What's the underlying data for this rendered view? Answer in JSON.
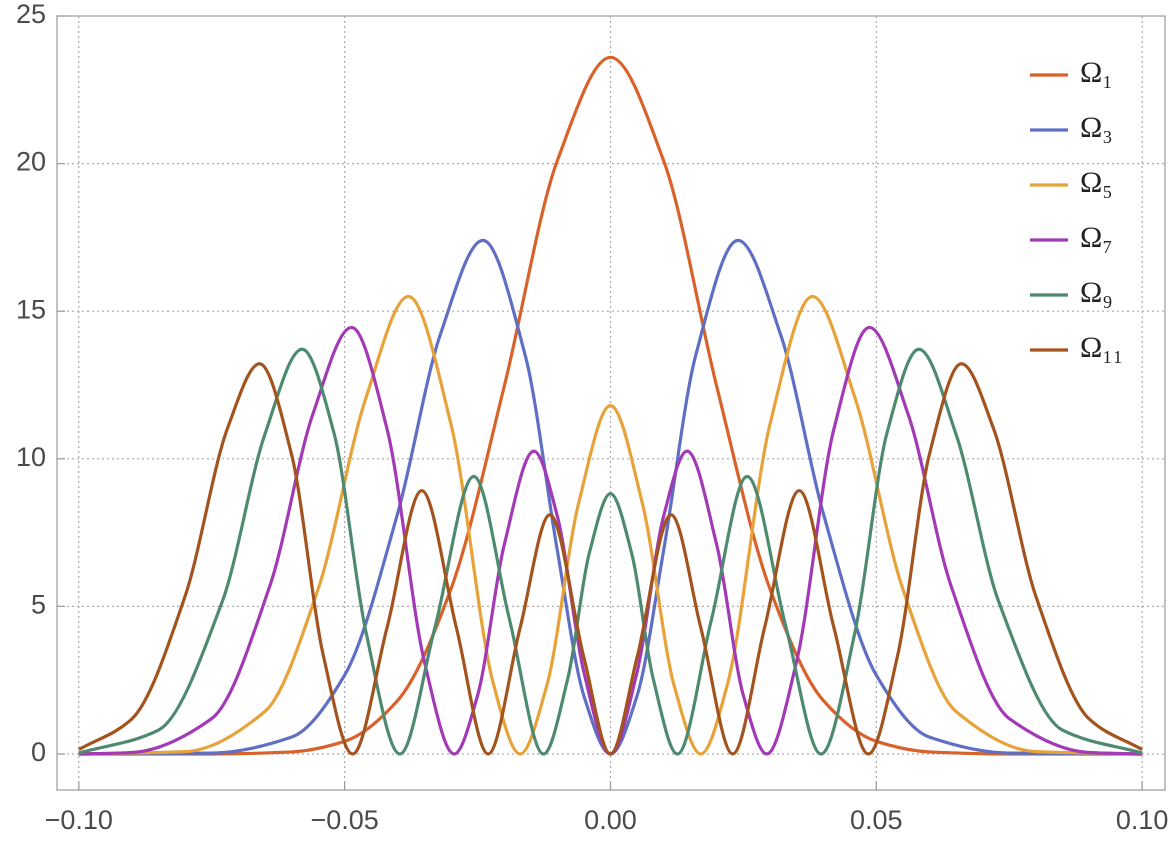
{
  "chart_data": {
    "type": "line",
    "xlim": [
      -0.1041,
      0.1043
    ],
    "ylim": [
      -1.22,
      25
    ],
    "xticks": [
      {
        "value": -0.1,
        "label": "−0.10"
      },
      {
        "value": -0.05,
        "label": "−0.05"
      },
      {
        "value": 0,
        "label": "0.00"
      },
      {
        "value": 0.05,
        "label": "0.05"
      },
      {
        "value": 0.1,
        "label": "0.10"
      }
    ],
    "yticks": [
      0,
      5,
      10,
      15,
      20,
      25
    ],
    "grid": true,
    "legend": "upper right",
    "series": [
      {
        "name": "Ω₁",
        "color": "#d9622b",
        "x": [
          -0.1,
          -0.075,
          -0.06,
          -0.05,
          -0.04,
          -0.03,
          -0.02,
          -0.01,
          0,
          0.01,
          0.02,
          0.03,
          0.04,
          0.05,
          0.06,
          0.075,
          0.1
        ],
        "values": [
          0,
          0,
          0.07,
          0.43,
          1.82,
          5.59,
          12.44,
          20.1,
          23.6,
          20.1,
          12.44,
          5.59,
          1.82,
          0.43,
          0.07,
          0,
          0
        ]
      },
      {
        "name": "Ω₃",
        "color": "#5e6fc4",
        "x": [
          -0.1,
          -0.075,
          -0.06,
          -0.05,
          -0.04,
          -0.032,
          -0.024,
          -0.016,
          -0.01,
          -0.005,
          0,
          0.005,
          0.01,
          0.016,
          0.024,
          0.032,
          0.04,
          0.05,
          0.06,
          0.075,
          0.1
        ],
        "values": [
          0,
          0.03,
          0.57,
          2.67,
          8.17,
          14.21,
          17.4,
          13.48,
          6.9,
          1.97,
          0,
          1.97,
          6.9,
          13.48,
          17.4,
          14.21,
          8.17,
          2.67,
          0.57,
          0.03,
          0
        ]
      },
      {
        "name": "Ω₅",
        "color": "#e8a23a",
        "x": [
          -0.1,
          -0.08,
          -0.065,
          -0.055,
          -0.046,
          -0.038,
          -0.03,
          -0.022,
          -0.017,
          -0.012,
          -0.006,
          0,
          0.006,
          0.012,
          0.017,
          0.022,
          0.03,
          0.038,
          0.046,
          0.055,
          0.065,
          0.08,
          0.1
        ],
        "values": [
          0,
          0.08,
          1.44,
          5.58,
          12.06,
          15.5,
          11.17,
          2.36,
          0,
          2.3,
          8.49,
          11.8,
          8.49,
          2.3,
          0,
          2.36,
          11.17,
          15.5,
          12.06,
          5.58,
          1.44,
          0.08,
          0
        ]
      },
      {
        "name": "Ω₇",
        "color": "#a23ab5",
        "x": [
          -0.1,
          -0.09,
          -0.075,
          -0.064,
          -0.056,
          -0.0487,
          -0.042,
          -0.035,
          -0.0294,
          -0.025,
          -0.02,
          -0.0144,
          -0.01,
          -0.005,
          0,
          0.005,
          0.01,
          0.0144,
          0.02,
          0.025,
          0.0294,
          0.035,
          0.042,
          0.0487,
          0.056,
          0.064,
          0.075,
          0.09,
          0.1
        ],
        "values": [
          0,
          0.05,
          1.2,
          5.73,
          11.5,
          14.45,
          10.99,
          3.13,
          0,
          1.98,
          7.07,
          10.26,
          8.06,
          2.77,
          0,
          2.77,
          8.06,
          10.26,
          7.07,
          1.98,
          0,
          3.13,
          10.99,
          14.45,
          11.5,
          5.73,
          1.2,
          0.05,
          0
        ]
      },
      {
        "name": "Ω₉",
        "color": "#4e8a70",
        "x": [
          -0.1,
          -0.085,
          -0.073,
          -0.065,
          -0.058,
          -0.052,
          -0.046,
          -0.0396,
          -0.033,
          -0.0257,
          -0.019,
          -0.0126,
          -0.008,
          -0.004,
          0,
          0.004,
          0.008,
          0.0126,
          0.019,
          0.0257,
          0.033,
          0.0396,
          0.046,
          0.052,
          0.058,
          0.065,
          0.073,
          0.085,
          0.1
        ],
        "values": [
          0.03,
          0.81,
          5.17,
          10.83,
          13.71,
          10.87,
          4.14,
          0,
          4.3,
          9.4,
          4.56,
          0,
          2.58,
          6.79,
          8.82,
          6.79,
          2.58,
          0,
          4.56,
          9.4,
          4.3,
          0,
          4.14,
          10.87,
          13.71,
          10.83,
          5.17,
          0.81,
          0.03
        ]
      },
      {
        "name": "Ω₁₁",
        "color": "#a3531d",
        "x": [
          -0.1,
          -0.09,
          -0.08,
          -0.072,
          -0.066,
          -0.06,
          -0.054,
          -0.0485,
          -0.042,
          -0.0355,
          -0.029,
          -0.023,
          -0.017,
          -0.0114,
          -0.005,
          0,
          0.005,
          0.0114,
          0.017,
          0.023,
          0.029,
          0.0355,
          0.042,
          0.0485,
          0.054,
          0.06,
          0.066,
          0.072,
          0.08,
          0.09,
          0.1
        ],
        "values": [
          0.15,
          1.19,
          5.35,
          11.05,
          13.22,
          10.16,
          3.33,
          0,
          4.3,
          8.92,
          4.29,
          0,
          4.27,
          8.1,
          3.27,
          0,
          3.27,
          8.1,
          4.27,
          0,
          4.29,
          8.92,
          4.3,
          0,
          3.33,
          10.16,
          13.22,
          11.05,
          5.35,
          1.19,
          0.15
        ]
      }
    ]
  }
}
